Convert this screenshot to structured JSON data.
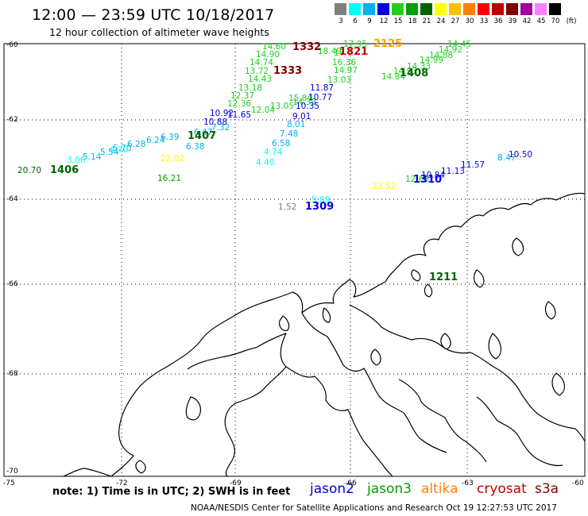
{
  "header": {
    "title": "12:00 — 23:59 UTC 10/18/2017",
    "subtitle": "12 hour collection of altimeter wave heights"
  },
  "legend": {
    "unit": "(ft)",
    "items": [
      {
        "label": "3",
        "color": "#808080"
      },
      {
        "label": "6",
        "color": "#00ffff"
      },
      {
        "label": "9",
        "color": "#00b0f0"
      },
      {
        "label": "12",
        "color": "#0000e0"
      },
      {
        "label": "15",
        "color": "#20d020"
      },
      {
        "label": "18",
        "color": "#00a000"
      },
      {
        "label": "21",
        "color": "#006400"
      },
      {
        "label": "24",
        "color": "#ffff00"
      },
      {
        "label": "27",
        "color": "#ffc000"
      },
      {
        "label": "30",
        "color": "#ff8000"
      },
      {
        "label": "33",
        "color": "#ff0000"
      },
      {
        "label": "36",
        "color": "#c00000"
      },
      {
        "label": "39",
        "color": "#800000"
      },
      {
        "label": "42",
        "color": "#a000a0"
      },
      {
        "label": "45",
        "color": "#ff80ff"
      },
      {
        "label": "70",
        "color": "#000000"
      }
    ]
  },
  "axes": {
    "lat_labels": [
      "-60",
      "-62",
      "-64",
      "-66",
      "-68",
      "-70"
    ],
    "lon_labels": [
      "-75",
      "-72",
      "-69",
      "-66",
      "-63",
      "-60"
    ]
  },
  "observations": [
    {
      "text": "14.60",
      "color": "#20d020"
    },
    {
      "text": "14.90",
      "color": "#20d020"
    },
    {
      "text": "14.74",
      "color": "#20d020"
    },
    {
      "text": "13.72",
      "color": "#20d020"
    },
    {
      "text": "14.43",
      "color": "#20d020"
    },
    {
      "text": "13.18",
      "color": "#20d020"
    },
    {
      "text": "12.37",
      "color": "#20d020"
    },
    {
      "text": "12.36",
      "color": "#20d020"
    },
    {
      "text": "17.95",
      "color": "#20d020"
    },
    {
      "text": "18.49",
      "color": "#20d020"
    },
    {
      "text": "17.7",
      "color": "#20d020"
    },
    {
      "text": "16.36",
      "color": "#20d020"
    },
    {
      "text": "14.97",
      "color": "#20d020"
    },
    {
      "text": "13.03",
      "color": "#20d020"
    },
    {
      "text": "12.04",
      "color": "#20d020"
    },
    {
      "text": "13.05",
      "color": "#20d020"
    },
    {
      "text": "14.39",
      "color": "#20d020"
    },
    {
      "text": "15.84",
      "color": "#20d020"
    },
    {
      "text": "14.45",
      "color": "#20d020"
    },
    {
      "text": "14.92",
      "color": "#20d020"
    },
    {
      "text": "14.88",
      "color": "#20d020"
    },
    {
      "text": "14.99",
      "color": "#20d020"
    },
    {
      "text": "14.33",
      "color": "#20d020"
    },
    {
      "text": "14.93",
      "color": "#20d020"
    },
    {
      "text": "14.84",
      "color": "#20d020"
    },
    {
      "text": "12.68",
      "color": "#20d020"
    },
    {
      "text": "16.21",
      "color": "#00a000"
    },
    {
      "text": "11.87",
      "color": "#0000e0"
    },
    {
      "text": "10.77",
      "color": "#0000e0"
    },
    {
      "text": "10.35",
      "color": "#0000e0"
    },
    {
      "text": "9.01",
      "color": "#0000e0"
    },
    {
      "text": "10.92",
      "color": "#0000e0"
    },
    {
      "text": "10.88",
      "color": "#0000e0"
    },
    {
      "text": "11.65",
      "color": "#0000e0"
    },
    {
      "text": "10.84",
      "color": "#0000e0"
    },
    {
      "text": "11.13",
      "color": "#0000e0"
    },
    {
      "text": "11.57",
      "color": "#0000e0"
    },
    {
      "text": "10.50",
      "color": "#0000e0"
    },
    {
      "text": "8.01",
      "color": "#00b0f0"
    },
    {
      "text": "7.48",
      "color": "#00b0f0"
    },
    {
      "text": "6.58",
      "color": "#00b0f0"
    },
    {
      "text": "7.32",
      "color": "#00b0f0"
    },
    {
      "text": "6.47",
      "color": "#00b0f0"
    },
    {
      "text": "6.38",
      "color": "#00b0f0"
    },
    {
      "text": "6.39",
      "color": "#00b0f0"
    },
    {
      "text": "6.24",
      "color": "#00b0f0"
    },
    {
      "text": "6.28",
      "color": "#00b0f0"
    },
    {
      "text": "5.70",
      "color": "#00b0f0"
    },
    {
      "text": "5.54",
      "color": "#00b0f0"
    },
    {
      "text": "5.14",
      "color": "#00b0f0"
    },
    {
      "text": "8.47",
      "color": "#00b0f0"
    },
    {
      "text": "4.74",
      "color": "#00ffff"
    },
    {
      "text": "4.40",
      "color": "#00ffff"
    },
    {
      "text": "3.06",
      "color": "#00ffff"
    },
    {
      "text": "5.09",
      "color": "#00ffff"
    },
    {
      "text": "4.70",
      "color": "#00ffff"
    },
    {
      "text": "1.52",
      "color": "#808080"
    },
    {
      "text": "22.02",
      "color": "#ffff00"
    },
    {
      "text": "23.52",
      "color": "#ffff00"
    },
    {
      "text": "20.70",
      "color": "#006400"
    },
    {
      "text": "1821",
      "color": "#c00000"
    }
  ],
  "time_labels": [
    {
      "text": "1332",
      "color": "#800000"
    },
    {
      "text": "1333",
      "color": "#800000"
    },
    {
      "text": "2125",
      "color": "#ffa000"
    },
    {
      "text": "1408",
      "color": "#006400"
    },
    {
      "text": "1407",
      "color": "#006400"
    },
    {
      "text": "1406",
      "color": "#006400"
    },
    {
      "text": "1310",
      "color": "#0000e0"
    },
    {
      "text": "1309",
      "color": "#0000e0"
    },
    {
      "text": "1211",
      "color": "#006400"
    }
  ],
  "footer": {
    "note": "note:  1) Time is in UTC;  2) SWH is in feet",
    "satellites": [
      {
        "name": "jason2",
        "color": "#0000e0"
      },
      {
        "name": "jason3",
        "color": "#00a000"
      },
      {
        "name": "altika",
        "color": "#ff8000"
      },
      {
        "name": "cryosat",
        "color": "#c00000"
      },
      {
        "name": "s3a",
        "color": "#800000"
      }
    ],
    "credit": "NOAA/NESDIS Center for Satellite Applications and Research    Oct 19 12:27:53 UTC 2017"
  }
}
